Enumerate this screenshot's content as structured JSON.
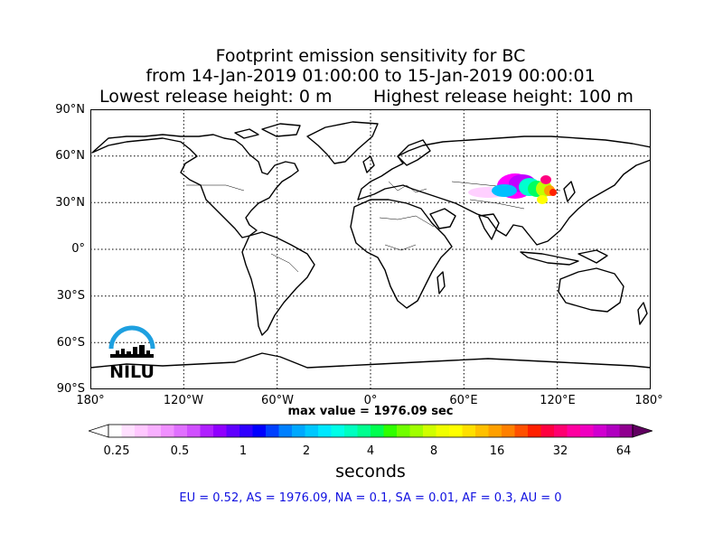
{
  "title": {
    "line1": "Footprint emission sensitivity for BC",
    "line2": "from 14-Jan-2019 01:00:00 to 15-Jan-2019 00:00:01",
    "line3_left": "Lowest release height: 0 m",
    "line3_right": "Highest release height: 100 m"
  },
  "map": {
    "lat_labels": [
      "90°N",
      "60°N",
      "30°N",
      "0°",
      "30°S",
      "60°S",
      "90°S"
    ],
    "lon_labels": [
      "180°",
      "120°W",
      "60°W",
      "0°",
      "60°E",
      "120°E",
      "180°"
    ],
    "plume_colors": [
      "#ff00ff",
      "#c000ff",
      "#8000ff",
      "#00c0ff",
      "#00ffd0",
      "#00ff60",
      "#c0ff00",
      "#ffff00",
      "#ffa000",
      "#ff2000",
      "#ff0080",
      "#ffd0ff"
    ]
  },
  "max_value": "max value = 1976.09 sec",
  "colorbar": {
    "ticks": [
      "0.25",
      "0.5",
      "1",
      "2",
      "4",
      "8",
      "16",
      "32",
      "64"
    ],
    "units": "seconds",
    "colors": [
      "#ffffff",
      "#ffe0ff",
      "#ffc8ff",
      "#f8b0ff",
      "#f090ff",
      "#e070ff",
      "#d050ff",
      "#b020ff",
      "#9000ff",
      "#6000ff",
      "#3000ff",
      "#0000ff",
      "#0040ff",
      "#0080ff",
      "#00a8ff",
      "#00c8ff",
      "#00e8ff",
      "#00ffe8",
      "#00ffc0",
      "#00ff90",
      "#00ff50",
      "#30ff00",
      "#70ff00",
      "#a0ff00",
      "#d0ff00",
      "#f0ff00",
      "#ffff00",
      "#ffe000",
      "#ffc000",
      "#ffa000",
      "#ff8000",
      "#ff5000",
      "#ff2000",
      "#ff0040",
      "#ff0070",
      "#ff00a0",
      "#f000c0",
      "#d000d0",
      "#b000c0",
      "#900090"
    ]
  },
  "regions": "EU = 0.52,  AS = 1976.09,  NA = 0.1,  SA = 0.01,  AF = 0.3,  AU = 0",
  "logo": {
    "text": "NILU"
  }
}
